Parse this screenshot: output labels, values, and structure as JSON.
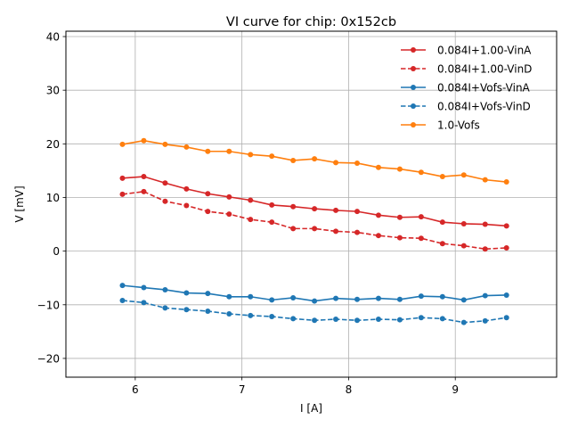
{
  "chart_data": {
    "type": "line",
    "title": "VI curve for chip: 0x152cb",
    "xlabel": "I [A]",
    "ylabel": "V [mV]",
    "xlim": [
      5.35,
      9.95
    ],
    "ylim": [
      -23.5,
      41
    ],
    "xticks": [
      6,
      7,
      8,
      9
    ],
    "yticks": [
      -20,
      -10,
      0,
      10,
      20,
      30,
      40
    ],
    "grid": true,
    "legend_position": "top-right",
    "x": [
      5.88,
      6.08,
      6.28,
      6.48,
      6.68,
      6.88,
      7.08,
      7.28,
      7.48,
      7.68,
      7.88,
      8.08,
      8.28,
      8.48,
      8.68,
      8.88,
      9.08,
      9.28,
      9.48
    ],
    "series": [
      {
        "name": "0.084I+1.00-VinA",
        "color": "#d62728",
        "dashed": false,
        "values": [
          13.6,
          13.9,
          12.7,
          11.6,
          10.7,
          10.1,
          9.5,
          8.6,
          8.3,
          7.9,
          7.6,
          7.4,
          6.7,
          6.3,
          6.4,
          5.4,
          5.1,
          5.0,
          4.7
        ]
      },
      {
        "name": "0.084I+1.00-VinD",
        "color": "#d62728",
        "dashed": true,
        "values": [
          10.6,
          11.1,
          9.3,
          8.5,
          7.4,
          6.9,
          5.9,
          5.4,
          4.2,
          4.2,
          3.7,
          3.5,
          2.9,
          2.5,
          2.4,
          1.4,
          1.0,
          0.4,
          0.6
        ]
      },
      {
        "name": "0.084I+Vofs-VinA",
        "color": "#1f77b4",
        "dashed": false,
        "values": [
          -6.4,
          -6.8,
          -7.2,
          -7.8,
          -7.9,
          -8.5,
          -8.5,
          -9.1,
          -8.7,
          -9.3,
          -8.8,
          -9.0,
          -8.8,
          -9.0,
          -8.4,
          -8.5,
          -9.1,
          -8.3,
          -8.2
        ]
      },
      {
        "name": "0.084I+Vofs-VinD",
        "color": "#1f77b4",
        "dashed": true,
        "values": [
          -9.2,
          -9.6,
          -10.6,
          -10.9,
          -11.2,
          -11.7,
          -12.0,
          -12.2,
          -12.6,
          -12.9,
          -12.7,
          -12.9,
          -12.7,
          -12.8,
          -12.4,
          -12.6,
          -13.3,
          -13.0,
          -12.4
        ]
      },
      {
        "name": "1.0-Vofs",
        "color": "#ff7f0e",
        "dashed": false,
        "values": [
          19.9,
          20.6,
          19.9,
          19.4,
          18.6,
          18.6,
          18.0,
          17.7,
          16.9,
          17.2,
          16.5,
          16.4,
          15.6,
          15.3,
          14.7,
          13.9,
          14.2,
          13.3,
          12.9
        ]
      }
    ]
  }
}
